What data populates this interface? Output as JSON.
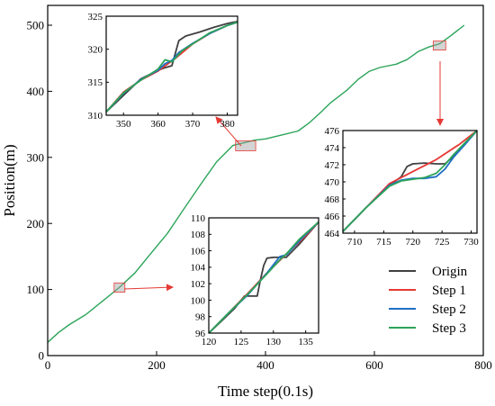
{
  "chart_data": [
    {
      "id": "main",
      "type": "line",
      "xlabel": "Time step(0.1s)",
      "ylabel": "Position(m)",
      "xlim": [
        0,
        800
      ],
      "ylim": [
        0,
        530
      ],
      "xticks": [
        0,
        200,
        400,
        600,
        800
      ],
      "yticks": [
        0,
        100,
        200,
        300,
        400,
        500
      ],
      "legend_position": "bottom-right",
      "series": [
        {
          "name": "Step 3",
          "color": "#2ca45a",
          "x": [
            0,
            20,
            40,
            70,
            100,
            130,
            160,
            190,
            220,
            250,
            280,
            310,
            340,
            360,
            380,
            400,
            430,
            460,
            480,
            500,
            520,
            550,
            570,
            590,
            610,
            640,
            660,
            680,
            700,
            720,
            740,
            765
          ],
          "y": [
            20,
            35,
            47,
            62,
            82,
            102,
            125,
            155,
            185,
            222,
            258,
            293,
            318,
            322,
            326,
            328,
            334,
            340,
            352,
            367,
            383,
            402,
            418,
            430,
            436,
            441,
            448,
            460,
            467,
            472,
            484,
            500
          ]
        }
      ],
      "legend": [
        {
          "name": "Origin",
          "color": "#404040"
        },
        {
          "name": "Step 1",
          "color": "#e53935"
        },
        {
          "name": "Step 2",
          "color": "#1f6fc5"
        },
        {
          "name": "Step 3",
          "color": "#2ca45a"
        }
      ],
      "highlight_boxes": [
        {
          "x": [
            122,
            138
          ],
          "y": [
            96,
            110
          ]
        },
        {
          "x": [
            345,
            382
          ],
          "y": [
            310,
            325
          ]
        },
        {
          "x": [
            708,
            731
          ],
          "y": [
            464,
            476
          ]
        }
      ]
    },
    {
      "id": "inset1",
      "type": "line",
      "xlim": [
        345,
        383
      ],
      "ylim": [
        310,
        325
      ],
      "xticks": [
        350,
        360,
        370,
        380
      ],
      "yticks": [
        310,
        315,
        320,
        325
      ],
      "series": [
        {
          "name": "Origin",
          "color": "#404040",
          "x": [
            345,
            350,
            355,
            360,
            362,
            364,
            366,
            368,
            372,
            376,
            380,
            383
          ],
          "y": [
            310.5,
            313,
            315.5,
            316.8,
            317.2,
            317.5,
            321.3,
            322,
            322.6,
            323.3,
            323.9,
            324.2
          ]
        },
        {
          "name": "Step 1",
          "color": "#e53935",
          "x": [
            345,
            350,
            355,
            360,
            365,
            370,
            375,
            380,
            383
          ],
          "y": [
            310.5,
            313.5,
            315.3,
            316.7,
            318.6,
            320.8,
            322.4,
            323.6,
            324.1
          ]
        },
        {
          "name": "Step 2",
          "color": "#1f6fc5",
          "x": [
            345,
            350,
            355,
            360,
            362,
            364,
            366,
            370,
            375,
            380,
            383
          ],
          "y": [
            310.5,
            313.3,
            315.4,
            316.8,
            317.8,
            318.3,
            319.5,
            320.9,
            322.4,
            323.6,
            324.1
          ]
        },
        {
          "name": "Step 3",
          "color": "#2ca45a",
          "x": [
            345,
            350,
            355,
            360,
            362,
            364,
            367,
            370,
            375,
            380,
            383
          ],
          "y": [
            310.5,
            313.4,
            315.3,
            317,
            318.4,
            318.1,
            319.8,
            320.8,
            322.5,
            323.6,
            324.1
          ]
        }
      ]
    },
    {
      "id": "inset2",
      "type": "line",
      "xlim": [
        708,
        731
      ],
      "ylim": [
        464,
        476
      ],
      "xticks": [
        710,
        715,
        720,
        725,
        730
      ],
      "yticks": [
        464,
        466,
        468,
        470,
        472,
        474,
        476
      ],
      "series": [
        {
          "name": "Origin",
          "color": "#404040",
          "x": [
            708,
            712,
            716,
            718,
            719,
            720,
            722,
            724,
            725.5,
            727,
            729,
            731
          ],
          "y": [
            464.2,
            467,
            469.6,
            470.6,
            471.8,
            472.1,
            472.2,
            472.1,
            472.1,
            473,
            474.5,
            476
          ]
        },
        {
          "name": "Step 1",
          "color": "#e53935",
          "x": [
            708,
            712,
            716,
            720,
            724,
            728,
            731
          ],
          "y": [
            464.2,
            467,
            469.8,
            471.2,
            472.6,
            474.4,
            476
          ]
        },
        {
          "name": "Step 2",
          "color": "#1f6fc5",
          "x": [
            708,
            712,
            716,
            718,
            720,
            722,
            724,
            725.5,
            727,
            729,
            731
          ],
          "y": [
            464.2,
            467,
            469.6,
            470.2,
            470.4,
            470.4,
            470.6,
            471.5,
            472.9,
            474.4,
            476
          ]
        },
        {
          "name": "Step 3",
          "color": "#2ca45a",
          "x": [
            708,
            712,
            716,
            718,
            720,
            722,
            724,
            725.5,
            727,
            729,
            731
          ],
          "y": [
            464.2,
            467,
            469.5,
            470.1,
            470.3,
            470.5,
            471,
            472,
            473.2,
            474.6,
            476
          ]
        }
      ]
    },
    {
      "id": "inset3",
      "type": "line",
      "xlim": [
        120,
        137
      ],
      "ylim": [
        96,
        110
      ],
      "xticks": [
        120,
        125,
        130,
        135
      ],
      "yticks": [
        96,
        98,
        100,
        102,
        104,
        106,
        108,
        110
      ],
      "series": [
        {
          "name": "Origin",
          "color": "#404040",
          "x": [
            120,
            122,
            124,
            125.5,
            126.5,
            127.5,
            128,
            128.5,
            129,
            130,
            131,
            132,
            134,
            137
          ],
          "y": [
            96,
            97.5,
            99,
            100.5,
            100.5,
            100.5,
            102.5,
            104.2,
            105.1,
            105.2,
            105.2,
            105.2,
            106.8,
            109.5
          ]
        },
        {
          "name": "Step 1",
          "color": "#e53935",
          "x": [
            120,
            123,
            126,
            129,
            132,
            135,
            137
          ],
          "y": [
            96,
            98.4,
            100.8,
            103.3,
            105.6,
            107.8,
            109.5
          ]
        },
        {
          "name": "Step 2",
          "color": "#1f6fc5",
          "x": [
            120,
            123,
            126,
            129,
            131,
            132,
            134,
            137
          ],
          "y": [
            96,
            98.4,
            100.6,
            103.3,
            105.3,
            105.5,
            107.2,
            109.5
          ]
        },
        {
          "name": "Step 3",
          "color": "#2ca45a",
          "x": [
            120,
            123,
            126,
            129,
            131,
            132,
            134,
            137
          ],
          "y": [
            96,
            98.4,
            100.7,
            103.2,
            104.9,
            105.6,
            107.4,
            109.5
          ]
        }
      ]
    }
  ]
}
